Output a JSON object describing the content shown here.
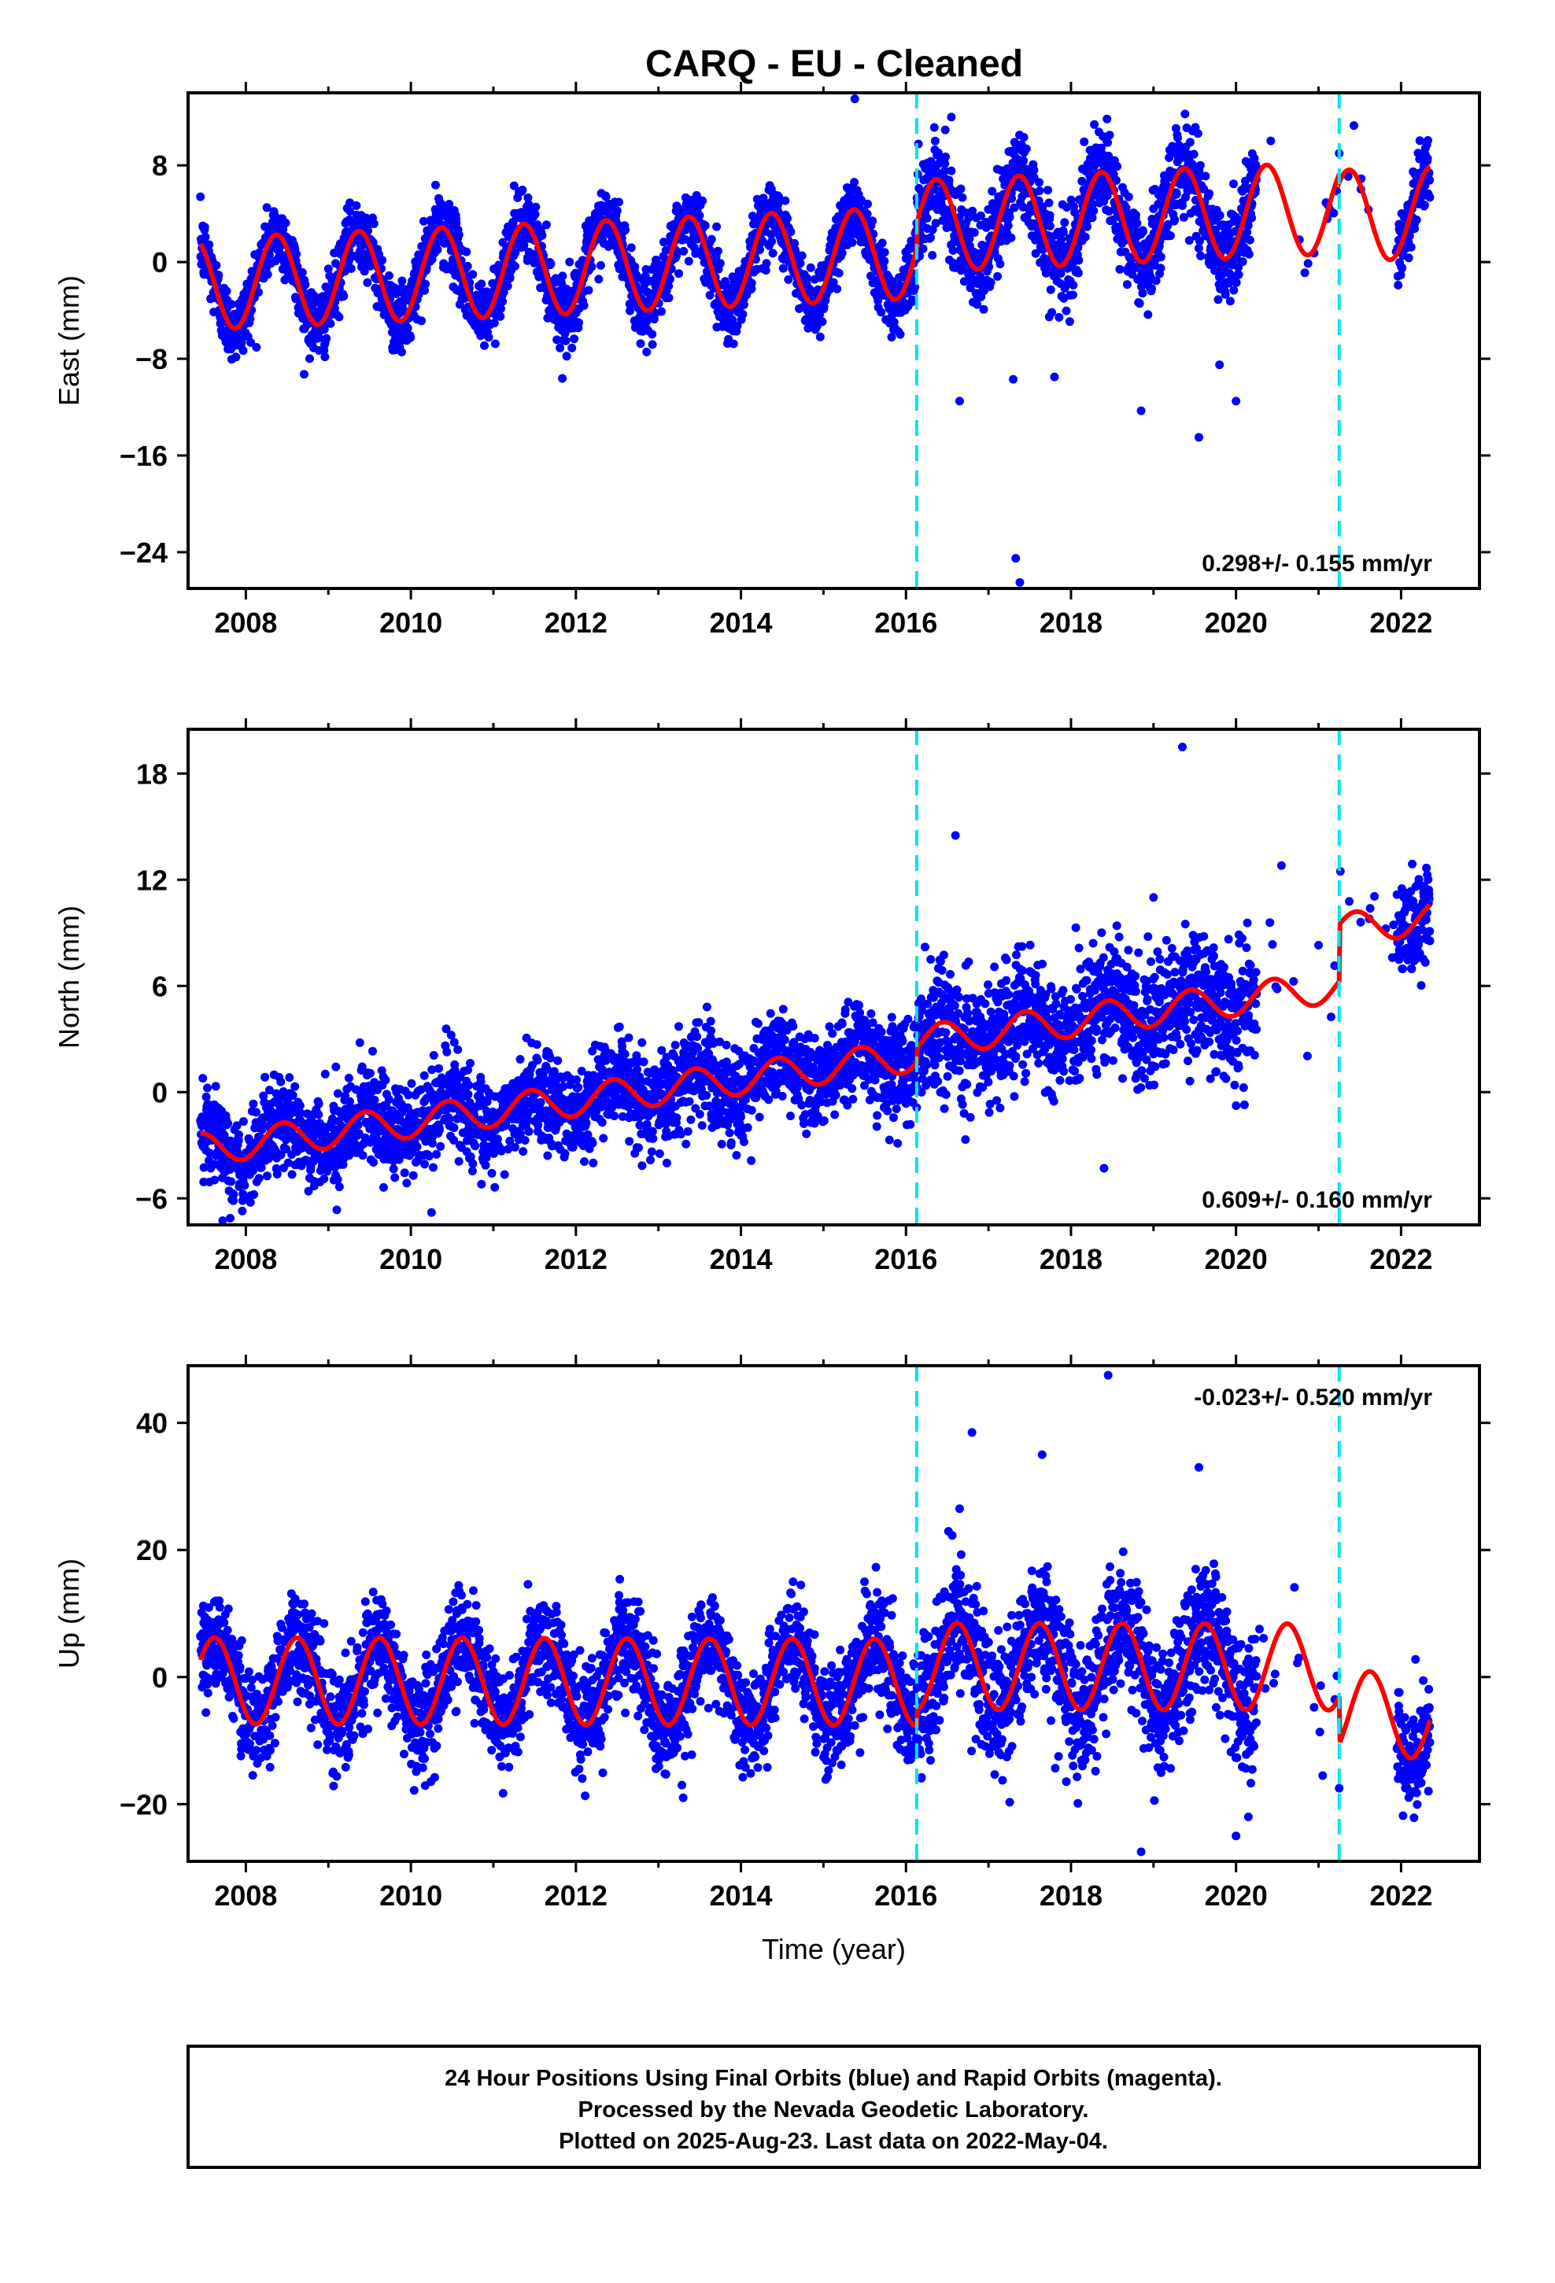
{
  "title": "CARQ  - EU - Cleaned",
  "footer": {
    "lines": [
      "24 Hour Positions Using Final Orbits (blue) and Rapid Orbits (magenta).",
      "Processed by the Nevada Geodetic Laboratory.",
      "Plotted on 2025-Aug-23. Last data on 2022-May-04."
    ]
  },
  "colors": {
    "data": "#0000ff",
    "model": "#ff0000",
    "offsets": "#00e5ee",
    "frame": "#000000"
  },
  "chart_data": [
    {
      "type": "scatter",
      "component": "east",
      "ylabel": "East (mm)",
      "xlabel": "",
      "rate": "0.298+/- 0.155 mm/yr",
      "rate_position": "bottom-right",
      "xlim": [
        2007.3,
        2022.95
      ],
      "ylim": [
        -27,
        14
      ],
      "xticks": [
        2008,
        2010,
        2012,
        2014,
        2016,
        2018,
        2020,
        2022
      ],
      "yticks": [
        -24,
        -16,
        -8,
        0,
        8
      ],
      "offset_lines": [
        2016.13,
        2021.25
      ],
      "data_span": [
        2007.45,
        2022.35
      ],
      "model": {
        "trend": 0.298,
        "intercept": -1.8,
        "annual_amp": 3.8,
        "annual_phase": 2008.37,
        "scatter": 1.4,
        "segment_offsets": [
          0,
          2.2,
          1.5
        ]
      },
      "outliers": [
        [
          2015.38,
          13.5
        ],
        [
          2016.55,
          12
        ],
        [
          2016.65,
          -11.5
        ],
        [
          2017.3,
          -9.7
        ],
        [
          2017.8,
          -9.5
        ],
        [
          2018.85,
          -12.3
        ],
        [
          2019.55,
          -14.5
        ],
        [
          2019.8,
          -8.5
        ],
        [
          2020.0,
          -11.5
        ],
        [
          2017.33,
          -24.5
        ],
        [
          2017.38,
          -26.5
        ],
        [
          2021.25,
          9
        ],
        [
          2019.3,
          9.5
        ]
      ]
    },
    {
      "type": "scatter",
      "component": "north",
      "ylabel": "North (mm)",
      "xlabel": "",
      "rate": "0.609+/- 0.160 mm/yr",
      "rate_position": "bottom-right",
      "xlim": [
        2007.3,
        2022.95
      ],
      "ylim": [
        -7.5,
        20.5
      ],
      "xticks": [
        2008,
        2010,
        2012,
        2014,
        2016,
        2018,
        2020,
        2022
      ],
      "yticks": [
        -6,
        0,
        6,
        12,
        18
      ],
      "offset_lines": [
        2016.13,
        2021.25
      ],
      "data_span": [
        2007.45,
        2022.35
      ],
      "model": {
        "trend": 0.609,
        "intercept": -3.2,
        "annual_amp": 0.9,
        "annual_phase": 2008.45,
        "scatter": 1.3,
        "segment_offsets": [
          0,
          0.8,
          4.0
        ]
      },
      "outliers": [
        [
          2019.35,
          19.5
        ],
        [
          2016.6,
          14.5
        ],
        [
          2020.55,
          12.8
        ],
        [
          2018.4,
          -4.3
        ],
        [
          2010.25,
          -6.8
        ],
        [
          2015.8,
          -2.7
        ],
        [
          2012.8,
          2.8
        ],
        [
          2016.3,
          7.5
        ],
        [
          2021.0,
          8.3
        ],
        [
          2019.0,
          11
        ]
      ]
    },
    {
      "type": "scatter",
      "component": "up",
      "ylabel": "Up (mm)",
      "xlabel": "Time (year)",
      "rate": "-0.023+/- 0.520 mm/yr",
      "rate_position": "top-right",
      "xlim": [
        2007.3,
        2022.95
      ],
      "ylim": [
        -29,
        49
      ],
      "xticks": [
        2008,
        2010,
        2012,
        2014,
        2016,
        2018,
        2020,
        2022
      ],
      "yticks": [
        -20,
        0,
        20,
        40
      ],
      "offset_lines": [
        2016.13,
        2021.25
      ],
      "data_span": [
        2007.45,
        2022.35
      ],
      "model": {
        "trend": -0.023,
        "intercept": -0.6,
        "annual_amp": 6.8,
        "annual_phase": 2008.62,
        "scatter": 4.0,
        "segment_offsets": [
          0,
          2.5,
          -5.0
        ]
      },
      "outliers": [
        [
          2018.45,
          47.5
        ],
        [
          2016.8,
          38.5
        ],
        [
          2017.65,
          35
        ],
        [
          2019.55,
          33
        ],
        [
          2016.65,
          26.5
        ],
        [
          2018.85,
          -27.5
        ],
        [
          2020.0,
          -25
        ],
        [
          2020.15,
          -22
        ],
        [
          2013.3,
          -19
        ],
        [
          2021.25,
          -17.5
        ],
        [
          2021.05,
          -15.5
        ]
      ]
    }
  ]
}
